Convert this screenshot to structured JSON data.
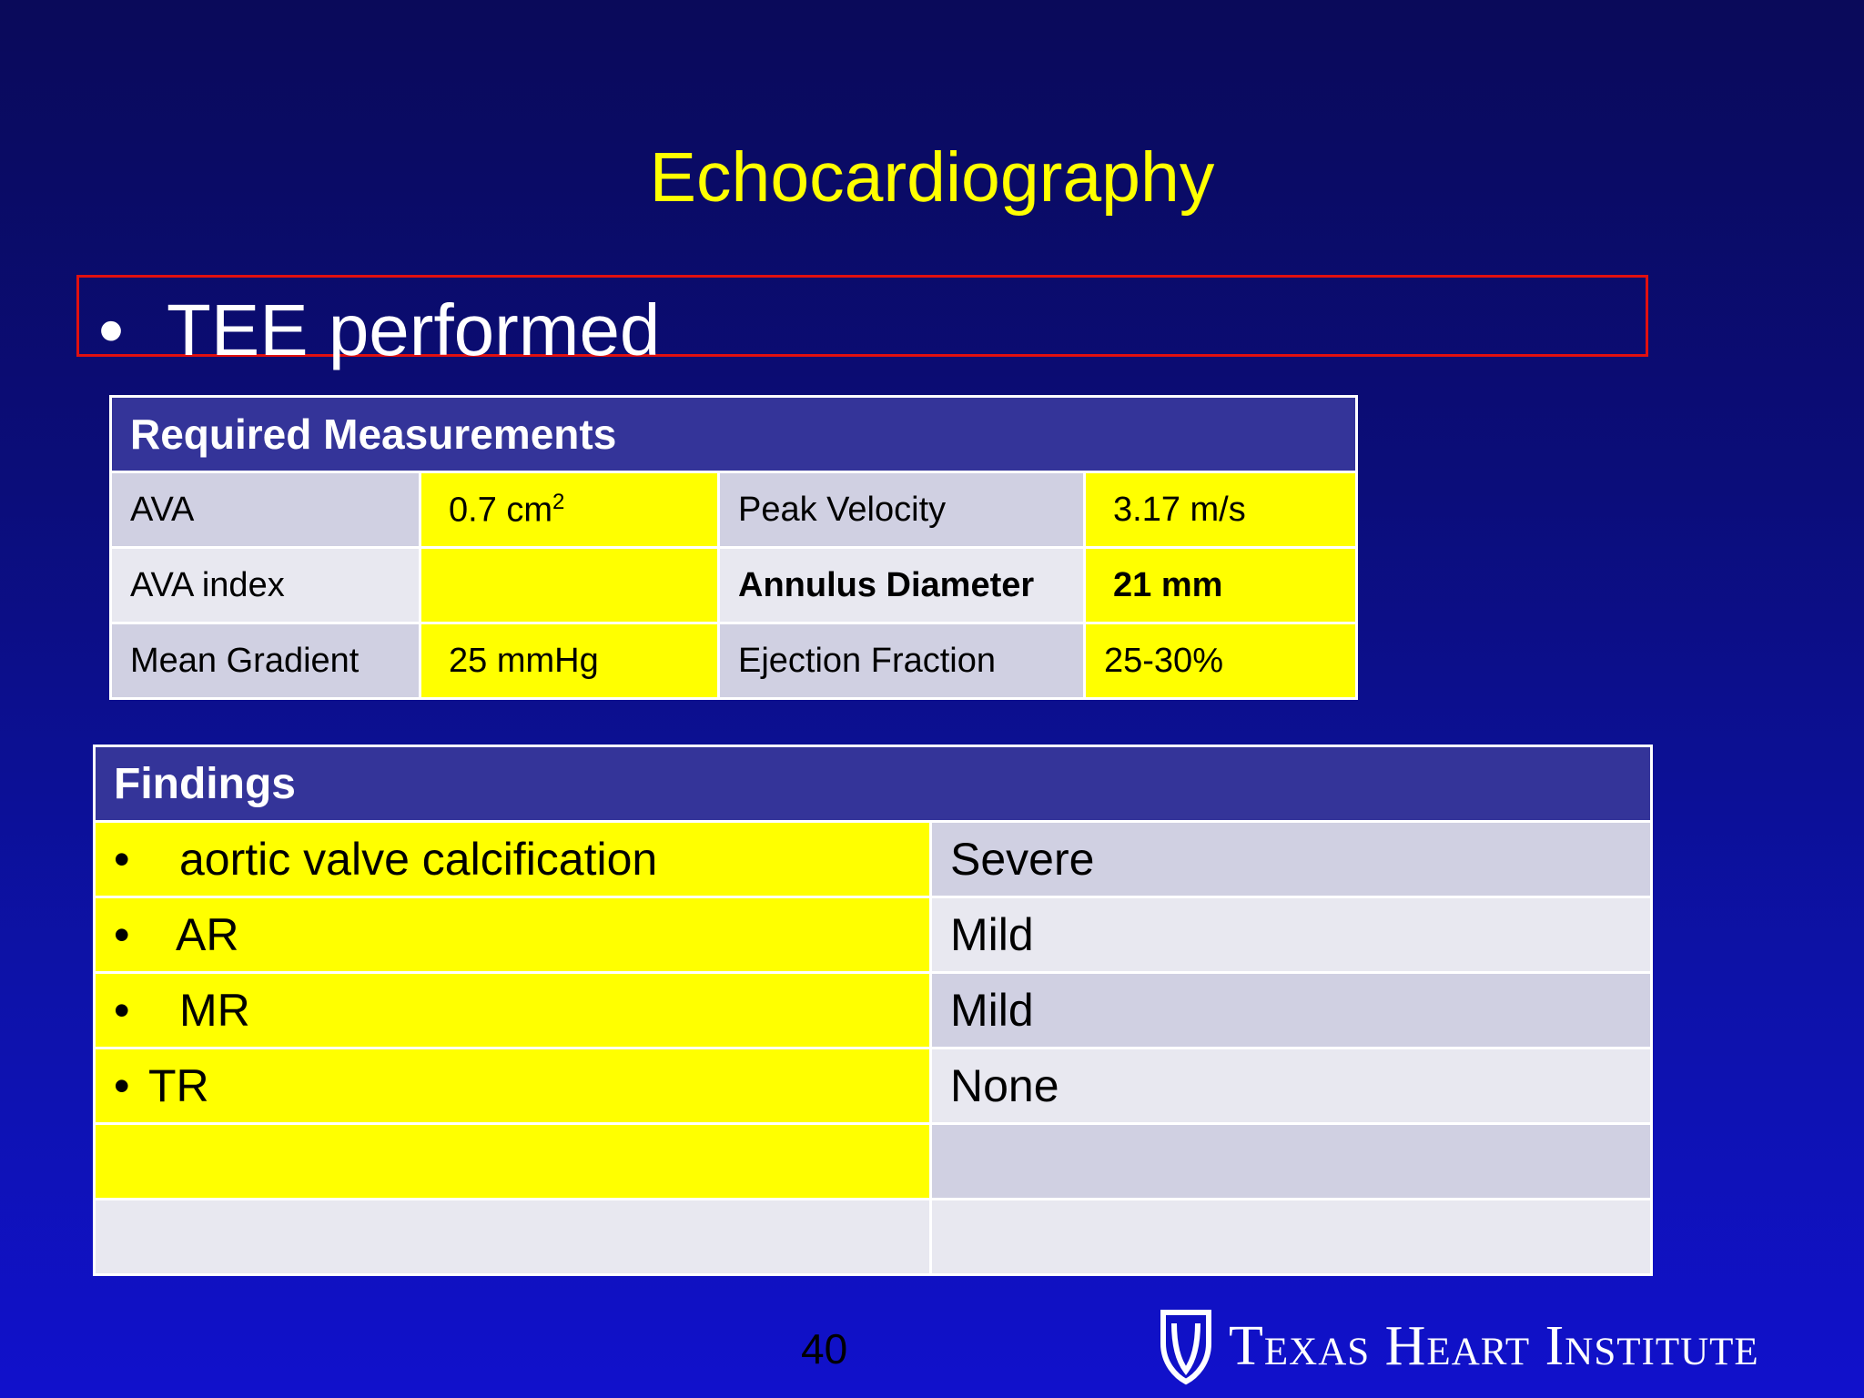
{
  "slide": {
    "title": "Echocardiography",
    "bullet": "TEE performed",
    "page_number": "40"
  },
  "measurements": {
    "header": "Required Measurements",
    "rows": [
      {
        "label1": "AVA",
        "value1": "0.7 cm",
        "value1_sup": "2",
        "label2": "Peak Velocity",
        "value2": "3.17  m/s"
      },
      {
        "label1": "AVA index",
        "value1": "",
        "label2": "Annulus Diameter",
        "value2": "21  mm"
      },
      {
        "label1": "Mean Gradient",
        "value1": "25 mmHg",
        "label2": "Ejection Fraction",
        "value2": "25-30%"
      }
    ]
  },
  "findings": {
    "header": "Findings",
    "rows": [
      {
        "item": "aortic valve calcification",
        "value": "Severe"
      },
      {
        "item": "AR",
        "value": "Mild"
      },
      {
        "item": "MR",
        "value": "Mild"
      },
      {
        "item": "TR",
        "value": "None"
      }
    ]
  },
  "logo": {
    "text": "Texas Heart Institute",
    "registered": "®"
  },
  "colors": {
    "title": "#ffff00",
    "header_bg": "#343499",
    "highlight": "#ffff00",
    "frame": "#e01010"
  }
}
